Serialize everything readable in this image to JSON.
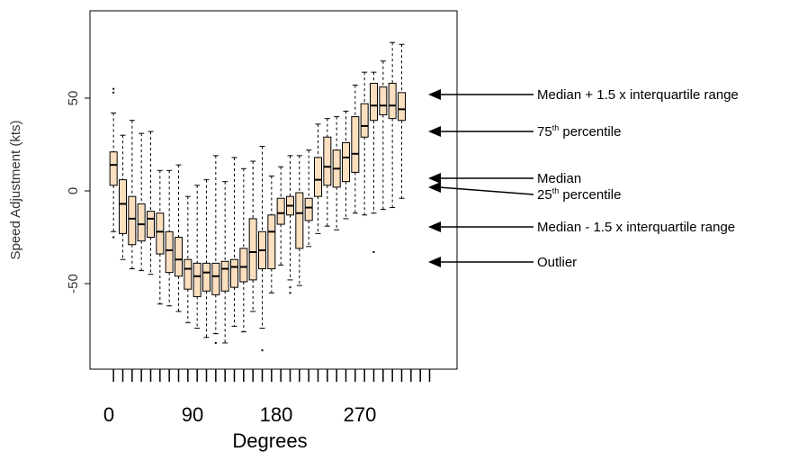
{
  "chart_data": {
    "type": "box",
    "xlabel": "Degrees",
    "ylabel": "Speed Adjustment (kts)",
    "x_ticks": [
      0,
      90,
      180,
      270
    ],
    "y_ticks": [
      -50,
      0,
      50
    ],
    "xlim": [
      0,
      360
    ],
    "ylim": [
      -95,
      95
    ],
    "box_fill": "#fbdfbf",
    "box_stroke": "#000000",
    "positions": [
      10,
      20,
      30,
      40,
      50,
      60,
      70,
      80,
      90,
      100,
      110,
      120,
      130,
      140,
      150,
      160,
      170,
      180,
      190,
      200,
      210,
      220,
      230,
      240,
      250,
      260,
      270,
      280,
      290,
      300,
      310,
      320,
      330,
      340,
      350
    ],
    "boxes": [
      {
        "x": 5,
        "q1": 3,
        "median": 14,
        "q3": 21,
        "lower_whisker": -22,
        "upper_whisker": 42,
        "outliers": [
          55,
          53,
          -25
        ]
      },
      {
        "x": 15,
        "q1": -23,
        "median": -7,
        "q3": 6,
        "lower_whisker": -37,
        "upper_whisker": 30,
        "outliers": []
      },
      {
        "x": 25,
        "q1": -29,
        "median": -15,
        "q3": -3,
        "lower_whisker": -42,
        "upper_whisker": 38,
        "outliers": []
      },
      {
        "x": 35,
        "q1": -27,
        "median": -18,
        "q3": -7,
        "lower_whisker": -43,
        "upper_whisker": 31,
        "outliers": []
      },
      {
        "x": 45,
        "q1": -25,
        "median": -15,
        "q3": -11,
        "lower_whisker": -45,
        "upper_whisker": 32,
        "outliers": []
      },
      {
        "x": 55,
        "q1": -34,
        "median": -22,
        "q3": -12,
        "lower_whisker": -61,
        "upper_whisker": 11,
        "outliers": []
      },
      {
        "x": 65,
        "q1": -44,
        "median": -32,
        "q3": -22,
        "lower_whisker": -62,
        "upper_whisker": 11,
        "outliers": []
      },
      {
        "x": 75,
        "q1": -46,
        "median": -37,
        "q3": -25,
        "lower_whisker": -65,
        "upper_whisker": 14,
        "outliers": []
      },
      {
        "x": 85,
        "q1": -53,
        "median": -42,
        "q3": -37,
        "lower_whisker": -71,
        "upper_whisker": -3,
        "outliers": []
      },
      {
        "x": 95,
        "q1": -57,
        "median": -46,
        "q3": -39,
        "lower_whisker": -74,
        "upper_whisker": 3,
        "outliers": []
      },
      {
        "x": 105,
        "q1": -54,
        "median": -44,
        "q3": -39,
        "lower_whisker": -79,
        "upper_whisker": 6,
        "outliers": []
      },
      {
        "x": 115,
        "q1": -56,
        "median": -46,
        "q3": -39,
        "lower_whisker": -77,
        "upper_whisker": 19,
        "outliers": [
          -82
        ]
      },
      {
        "x": 125,
        "q1": -54,
        "median": -42,
        "q3": -38,
        "lower_whisker": -82,
        "upper_whisker": 5,
        "outliers": []
      },
      {
        "x": 135,
        "q1": -52,
        "median": -41,
        "q3": -37,
        "lower_whisker": -73,
        "upper_whisker": 18,
        "outliers": []
      },
      {
        "x": 145,
        "q1": -49,
        "median": -41,
        "q3": -31,
        "lower_whisker": -76,
        "upper_whisker": 12,
        "outliers": []
      },
      {
        "x": 155,
        "q1": -48,
        "median": -33,
        "q3": -15,
        "lower_whisker": -65,
        "upper_whisker": 16,
        "outliers": []
      },
      {
        "x": 165,
        "q1": -42,
        "median": -32,
        "q3": -22,
        "lower_whisker": -74,
        "upper_whisker": 24,
        "outliers": [
          -86
        ]
      },
      {
        "x": 175,
        "q1": -42,
        "median": -22,
        "q3": -13,
        "lower_whisker": -55,
        "upper_whisker": 8,
        "outliers": []
      },
      {
        "x": 185,
        "q1": -18,
        "median": -12,
        "q3": -4,
        "lower_whisker": -40,
        "upper_whisker": 13,
        "outliers": []
      },
      {
        "x": 195,
        "q1": -13,
        "median": -8,
        "q3": -3,
        "lower_whisker": -48,
        "upper_whisker": 19,
        "outliers": [
          -52,
          -55
        ]
      },
      {
        "x": 205,
        "q1": -31,
        "median": -12,
        "q3": -1,
        "lower_whisker": -51,
        "upper_whisker": 19,
        "outliers": []
      },
      {
        "x": 215,
        "q1": -16,
        "median": -9,
        "q3": -4,
        "lower_whisker": -30,
        "upper_whisker": 22,
        "outliers": []
      },
      {
        "x": 225,
        "q1": -3,
        "median": 6,
        "q3": 18,
        "lower_whisker": -23,
        "upper_whisker": 36,
        "outliers": []
      },
      {
        "x": 235,
        "q1": 3,
        "median": 13,
        "q3": 29,
        "lower_whisker": -19,
        "upper_whisker": 39,
        "outliers": []
      },
      {
        "x": 245,
        "q1": 2,
        "median": 12,
        "q3": 22,
        "lower_whisker": -21,
        "upper_whisker": 40,
        "outliers": []
      },
      {
        "x": 255,
        "q1": 5,
        "median": 18,
        "q3": 26,
        "lower_whisker": -15,
        "upper_whisker": 43,
        "outliers": []
      },
      {
        "x": 265,
        "q1": 10,
        "median": 20,
        "q3": 40,
        "lower_whisker": -12,
        "upper_whisker": 57,
        "outliers": []
      },
      {
        "x": 275,
        "q1": 29,
        "median": 35,
        "q3": 47,
        "lower_whisker": -13,
        "upper_whisker": 64,
        "outliers": []
      },
      {
        "x": 285,
        "q1": 38,
        "median": 46,
        "q3": 58,
        "lower_whisker": -12,
        "upper_whisker": 64,
        "outliers": [
          -33
        ]
      },
      {
        "x": 295,
        "q1": 41,
        "median": 46,
        "q3": 56,
        "lower_whisker": -10,
        "upper_whisker": 70,
        "outliers": []
      },
      {
        "x": 305,
        "q1": 39,
        "median": 46,
        "q3": 58,
        "lower_whisker": -9,
        "upper_whisker": 80,
        "outliers": []
      },
      {
        "x": 315,
        "q1": 38,
        "median": 44,
        "q3": 53,
        "lower_whisker": -4,
        "upper_whisker": 79,
        "outliers": []
      }
    ],
    "annotations": [
      {
        "label": "Median + 1.5 x interquartile range",
        "y": 53
      },
      {
        "label": "75th percentile",
        "y": 32,
        "sup": "th",
        "base": "75",
        "rest": " percentile"
      },
      {
        "label": "Median",
        "y": 6
      },
      {
        "label": "25th percentile",
        "y": 0,
        "sup": "th",
        "base": "25",
        "rest": " percentile"
      },
      {
        "label": "Median - 1.5 x interquartile range",
        "y": -19
      },
      {
        "label": "Outlier",
        "y": -38
      }
    ]
  }
}
